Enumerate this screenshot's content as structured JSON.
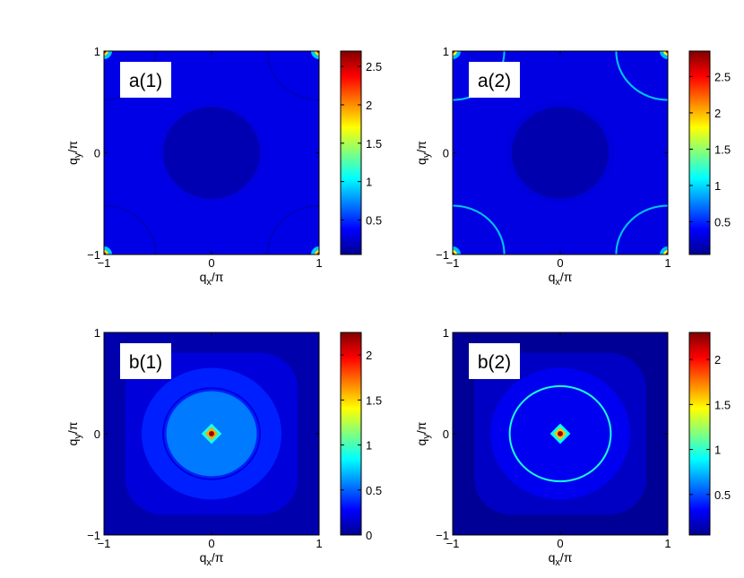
{
  "chart_data": [
    {
      "type": "heatmap",
      "panel_label": "a(1)",
      "xlabel_base": "q",
      "xlabel_sub": "x",
      "xlabel_tail": "/π",
      "ylabel_base": "q",
      "ylabel_sub": "y",
      "ylabel_tail": "/π",
      "xlim": [
        -1,
        1
      ],
      "ylim": [
        -1,
        1
      ],
      "xticks": [
        "−1",
        "0",
        "1"
      ],
      "yticks": [
        "−1",
        "0",
        "1"
      ],
      "colorbar": {
        "min": 0.05,
        "max": 2.7,
        "ticks": [
          0.5,
          1,
          1.5,
          2,
          2.5
        ],
        "labels": [
          "0.5",
          "1",
          "1.5",
          "2",
          "2.5"
        ]
      },
      "colormap": "jet",
      "features": {
        "background": 0.32,
        "central_disk": {
          "radius": 0.45,
          "value": 0.18
        },
        "ring": {
          "center": [
            0,
            0
          ],
          "radius": 0.47,
          "value": 0.3
        },
        "corner_arcs": {
          "radius": 0.48,
          "value": 0.22
        },
        "corner_peaks": {
          "value": 2.6
        }
      }
    },
    {
      "type": "heatmap",
      "panel_label": "a(2)",
      "xlabel_base": "q",
      "xlabel_sub": "x",
      "xlabel_tail": "/π",
      "ylabel_base": "q",
      "ylabel_sub": "y",
      "ylabel_tail": "/π",
      "xlim": [
        -1,
        1
      ],
      "ylim": [
        -1,
        1
      ],
      "xticks": [
        "−1",
        "0",
        "1"
      ],
      "yticks": [
        "−1",
        "0",
        "1"
      ],
      "colorbar": {
        "min": 0.05,
        "max": 2.85,
        "ticks": [
          0.5,
          1,
          1.5,
          2,
          2.5
        ],
        "labels": [
          "0.5",
          "1",
          "1.5",
          "2",
          "2.5"
        ]
      },
      "colormap": "jet",
      "features": {
        "background": 0.32,
        "central_disk": {
          "radius": 0.45,
          "value": 0.18
        },
        "ring": {
          "center": [
            0,
            0
          ],
          "radius": 0.47,
          "value": 0.3
        },
        "corner_arcs": {
          "radius": 0.48,
          "value": 0.95
        },
        "corner_peaks": {
          "value": 2.8
        }
      }
    },
    {
      "type": "heatmap",
      "panel_label": "b(1)",
      "xlabel_base": "q",
      "xlabel_sub": "x",
      "xlabel_tail": "/π",
      "ylabel_base": "q",
      "ylabel_sub": "y",
      "ylabel_tail": "/π",
      "xlim": [
        -1,
        1
      ],
      "ylim": [
        -1,
        1
      ],
      "xticks": [
        "−1",
        "0",
        "1"
      ],
      "yticks": [
        "−1",
        "0",
        "1"
      ],
      "colorbar": {
        "min": 0,
        "max": 2.25,
        "ticks": [
          0,
          0.5,
          1,
          1.5,
          2
        ],
        "labels": [
          "0",
          "0.5",
          "1",
          "1.5",
          "2"
        ]
      },
      "colormap": "jet",
      "features": {
        "background": 0.1,
        "outer_square": {
          "half_width": 0.8,
          "value": 0.2
        },
        "mid_region": {
          "radius": 0.65,
          "value": 0.35
        },
        "inner_disk": {
          "radius": 0.42,
          "value": 0.55
        },
        "contour": {
          "radius": 0.45,
          "value": 0.2
        },
        "center_peak": {
          "value": 2.2
        }
      }
    },
    {
      "type": "heatmap",
      "panel_label": "b(2)",
      "xlabel_base": "q",
      "xlabel_sub": "x",
      "xlabel_tail": "/π",
      "ylabel_base": "q",
      "ylabel_sub": "y",
      "ylabel_tail": "/π",
      "xlim": [
        -1,
        1
      ],
      "ylim": [
        -1,
        1
      ],
      "xticks": [
        "−1",
        "0",
        "1"
      ],
      "yticks": [
        "−1",
        "0",
        "1"
      ],
      "colorbar": {
        "min": 0.05,
        "max": 2.3,
        "ticks": [
          0.5,
          1,
          1.5,
          2
        ],
        "labels": [
          "0.5",
          "1",
          "1.5",
          "2"
        ]
      },
      "colormap": "jet",
      "features": {
        "background": 0.1,
        "outer_square": {
          "half_width": 0.8,
          "value": 0.2
        },
        "mid_region": {
          "radius": 0.65,
          "value": 0.3
        },
        "inner_disk": {
          "radius": 0.42,
          "value": 0.3
        },
        "contour": {
          "radius": 0.47,
          "value": 0.95
        },
        "center_peak": {
          "value": 2.25
        }
      }
    }
  ]
}
